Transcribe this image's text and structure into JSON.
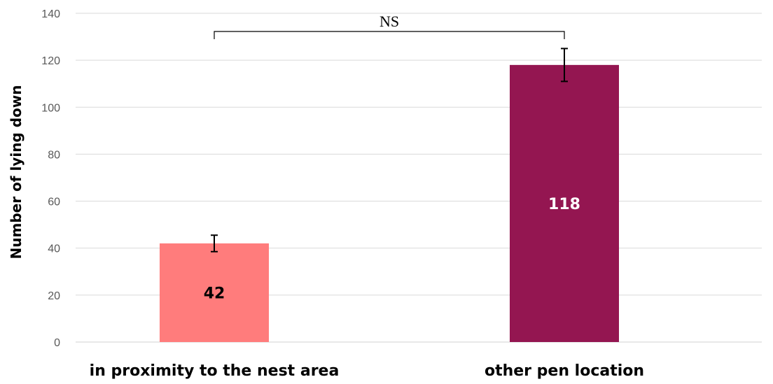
{
  "chart_data": {
    "type": "bar",
    "ylabel": "Number of lying down",
    "ylim": [
      0,
      140
    ],
    "yticks": [
      0,
      20,
      40,
      60,
      80,
      100,
      120,
      140
    ],
    "grid": true,
    "categories": [
      "in proximity to the nest area",
      "other pen location"
    ],
    "values": [
      42,
      118
    ],
    "errors": [
      3.5,
      7
    ],
    "colors": [
      "#ff7c7c",
      "#941651"
    ],
    "data_label_colors": [
      "#000000",
      "#ffffff"
    ],
    "data_labels": [
      "42",
      "118"
    ],
    "annotation": {
      "text": "NS",
      "between": [
        0,
        1
      ]
    }
  }
}
